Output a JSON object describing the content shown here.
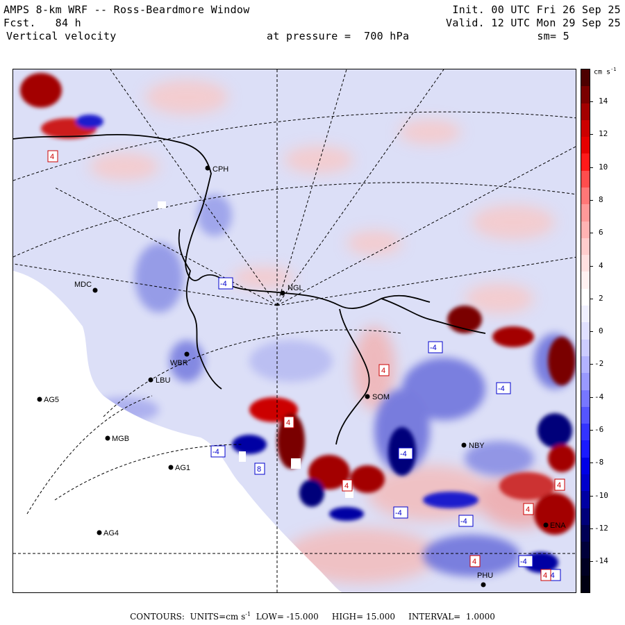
{
  "header": {
    "title": "AMPS 8-km WRF -- Ross-Beardmore Window",
    "fcst_label": "Fcst.",
    "fcst_value": "84 h",
    "field": "Vertical velocity",
    "init_label": "Init.",
    "init_value": "00 UTC Fri 26 Sep 25",
    "valid_label": "Valid.",
    "valid_value": "12 UTC Mon 29 Sep 25",
    "pressure_label": "at pressure =",
    "pressure_value": "700 hPa",
    "smooth_label": "sm=",
    "smooth_value": "5"
  },
  "colorbar": {
    "unit": "cm s",
    "unit_exp": "-1",
    "ticks": [
      "14",
      "12",
      "10",
      "8",
      "6",
      "4",
      "2",
      "0",
      "-2",
      "-4",
      "-6",
      "-8",
      "-10",
      "-12",
      "-14"
    ],
    "levels_top_to_bottom": [
      "#4d0000",
      "#7a0000",
      "#a30000",
      "#cc0000",
      "#e60000",
      "#ff1a1a",
      "#ff4d4d",
      "#ff7777",
      "#ff9999",
      "#ffb3b3",
      "#ffcccc",
      "#ffe0e0",
      "#fff0f0",
      "#ffffff",
      "#f0f0ff",
      "#e0e0ff",
      "#ccccff",
      "#b3b3ff",
      "#9999ff",
      "#7777ff",
      "#5555ff",
      "#3333ff",
      "#1a1aff",
      "#0000e6",
      "#0000cc",
      "#0000a3",
      "#00007a",
      "#000055",
      "#00003a",
      "#000022",
      "#000011"
    ]
  },
  "stations": [
    {
      "id": "stn-cph",
      "label": "CPH"
    },
    {
      "id": "stn-mdc",
      "label": "MDC"
    },
    {
      "id": "stn-ngl",
      "label": "NGL"
    },
    {
      "id": "stn-lbu",
      "label": "LBU"
    },
    {
      "id": "stn-wbr",
      "label": "WBR"
    },
    {
      "id": "stn-ag5",
      "label": "AG5"
    },
    {
      "id": "stn-som",
      "label": "SOM"
    },
    {
      "id": "stn-mgb",
      "label": "MGB"
    },
    {
      "id": "stn-nby",
      "label": "NBY"
    },
    {
      "id": "stn-ag1",
      "label": "AG1"
    },
    {
      "id": "stn-ag4",
      "label": "AG4"
    },
    {
      "id": "stn-phu",
      "label": "PHU"
    },
    {
      "id": "stn-ena",
      "label": "ENA"
    }
  ],
  "contour_boxes": [
    "4",
    "-4",
    "-4",
    "4",
    "-4",
    "-4",
    "4",
    "-4",
    "4",
    "4",
    "-4",
    "8",
    "-4",
    "4",
    "-4",
    "4",
    "4",
    "-4"
  ],
  "footer": {
    "contours_label": "CONTOURS:",
    "units_label": "UNITS=cm s",
    "units_exp": "-1",
    "low_label": "LOW=",
    "low_value": "-15.000",
    "high_label": "HIGH=",
    "high_value": "15.000",
    "interval_label": "INTERVAL=",
    "interval_value": "1.0000"
  }
}
